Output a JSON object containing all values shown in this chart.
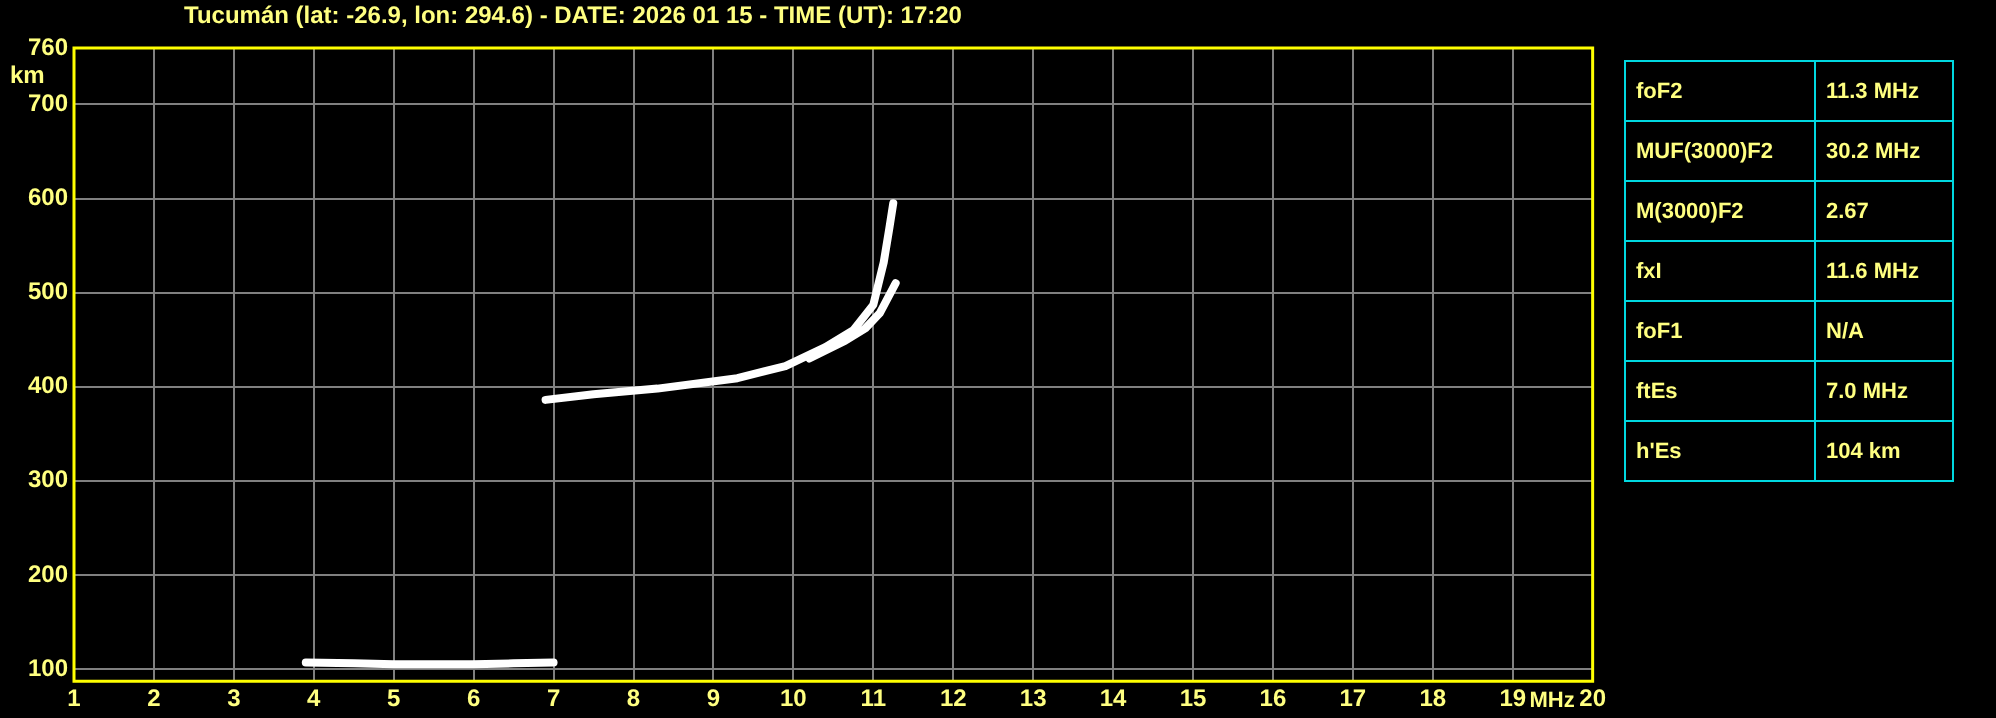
{
  "chart_data": {
    "type": "line",
    "title": "Tucumán (lat: -26.9, lon: 294.6) - DATE: 2026 01 15 - TIME (UT): 17:20",
    "xlabel": "MHz",
    "ylabel": "km",
    "series": [
      {
        "color": "#ffffff",
        "x": [
          3.9,
          4.5,
          5.0,
          5.5,
          6.0,
          6.5,
          7.0
        ],
        "values": [
          107,
          106,
          105,
          105,
          105,
          106,
          107
        ]
      },
      {
        "color": "#ffffff",
        "x": [
          6.9,
          7.5,
          8.3,
          9.3,
          9.9,
          10.4,
          10.75,
          11.0,
          11.13,
          11.2,
          11.25
        ],
        "values": [
          386,
          392,
          398,
          409,
          422,
          442,
          460,
          487,
          532,
          568,
          595
        ]
      },
      {
        "color": "#ffffff",
        "x": [
          10.2,
          10.65,
          10.9,
          11.08,
          11.28
        ],
        "values": [
          430,
          449,
          462,
          478,
          510
        ]
      }
    ],
    "xlim": [
      1,
      20
    ],
    "xticks": [
      1,
      2,
      3,
      4,
      5,
      6,
      7,
      8,
      9,
      10,
      11,
      12,
      13,
      14,
      15,
      16,
      17,
      18,
      19,
      20
    ],
    "ylim": [
      87,
      760
    ],
    "yticks": [
      100,
      200,
      300,
      400,
      500,
      600,
      700,
      760
    ],
    "grid": true,
    "legend": false,
    "marker": "none",
    "line_style": "solid",
    "annotations": [
      "foF2",
      "11.3 MHz",
      "MUF(3000)F2",
      "30.2 MHz",
      "M(3000)F2",
      "2.67",
      "fxI",
      "11.6 MHz",
      "foF1",
      "N/A",
      "ftEs",
      "7.0 MHz",
      "h'Es",
      "104 km"
    ]
  }
}
